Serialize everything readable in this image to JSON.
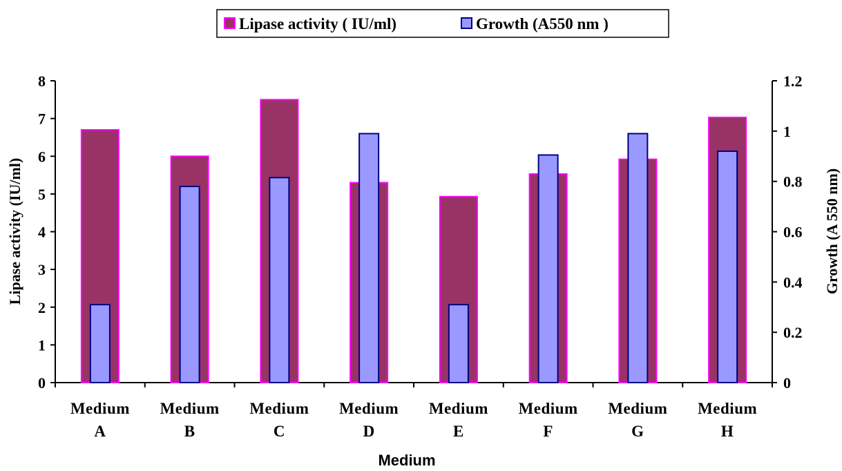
{
  "chart_data": {
    "type": "bar",
    "categories": [
      [
        "Medium",
        "A"
      ],
      [
        "Medium",
        "B"
      ],
      [
        "Medium",
        "C"
      ],
      [
        "Medium",
        "D"
      ],
      [
        "Medium",
        "E"
      ],
      [
        "Medium",
        "F"
      ],
      [
        "Medium",
        "G"
      ],
      [
        "Medium",
        "H"
      ]
    ],
    "series": [
      {
        "name": "Lipase activity ( IU/ml)",
        "axis": "left",
        "values": [
          6.7,
          6.0,
          7.5,
          5.3,
          4.93,
          5.53,
          5.92,
          7.03
        ],
        "color": "#993366",
        "border": "#ff00ff"
      },
      {
        "name": "Growth (A550 nm )",
        "axis": "right",
        "values": [
          0.31,
          0.78,
          0.815,
          0.99,
          0.31,
          0.905,
          0.99,
          0.92
        ],
        "color": "#9999ff",
        "border": "#000080"
      }
    ],
    "xlabel": "Medium",
    "ylabel_left": "Lipase activity (IU/ml)",
    "ylabel_right": "Growth (A 550 nm)",
    "ylim_left": [
      0,
      8
    ],
    "ylim_right": [
      0,
      1.2
    ],
    "yticks_left": [
      "0",
      "1",
      "2",
      "3",
      "4",
      "5",
      "6",
      "7",
      "8"
    ],
    "yticks_right": [
      "0",
      "0.2",
      "0.4",
      "0.6",
      "0.8",
      "1",
      "1.2"
    ],
    "grid": false,
    "legend_position": "top-center"
  }
}
